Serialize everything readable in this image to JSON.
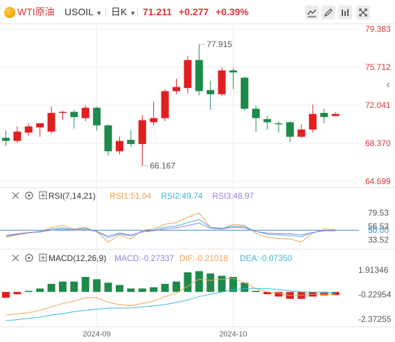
{
  "header": {
    "instrument_name": "WTI原油",
    "symbol": "USOIL",
    "period": "日K",
    "last_price": "71.211",
    "change": "+0.277",
    "change_pct": "+0.39%",
    "tools": [
      {
        "icon": "line-chart-icon"
      },
      {
        "icon": "draw-pen-icon"
      },
      {
        "icon": "indicator-bars-icon"
      },
      {
        "icon": "fullscreen-icon"
      }
    ],
    "collapse_icon": "‹"
  },
  "colors": {
    "up": "#e02020",
    "down": "#1e8a4a",
    "rsi1": "#f0a050",
    "rsi2": "#3ab7d8",
    "rsi3": "#9b7ee0",
    "dif": "#f0a050",
    "dea": "#3ab7d8",
    "price_axis": "#d93636",
    "grid": "#ececec"
  },
  "chart_data": [
    {
      "type": "candlestick",
      "title": "",
      "ylim": [
        64.699,
        79.383
      ],
      "y_ticks": [
        "79.383",
        "75.712",
        "72.041",
        "68.370",
        "64.699"
      ],
      "x_ticks": [
        "2024-09",
        "2024-10"
      ],
      "annotations": {
        "high": "77.915",
        "low": "66.167"
      },
      "grid": true,
      "candles": [
        {
          "o": 68.9,
          "h": 69.6,
          "l": 68.1,
          "c": 68.6
        },
        {
          "o": 68.6,
          "h": 70.0,
          "l": 68.4,
          "c": 69.5
        },
        {
          "o": 69.4,
          "h": 70.3,
          "l": 69.1,
          "c": 70.0
        },
        {
          "o": 69.9,
          "h": 70.3,
          "l": 69.0,
          "c": 70.3
        },
        {
          "o": 69.5,
          "h": 71.9,
          "l": 69.3,
          "c": 71.3
        },
        {
          "o": 71.3,
          "h": 71.5,
          "l": 70.6,
          "c": 71.4
        },
        {
          "o": 71.4,
          "h": 71.6,
          "l": 69.8,
          "c": 70.9
        },
        {
          "o": 70.8,
          "h": 72.0,
          "l": 70.5,
          "c": 71.8
        },
        {
          "o": 71.8,
          "h": 71.9,
          "l": 69.6,
          "c": 70.1
        },
        {
          "o": 70.1,
          "h": 70.2,
          "l": 67.2,
          "c": 67.6
        },
        {
          "o": 67.6,
          "h": 69.0,
          "l": 67.3,
          "c": 68.6
        },
        {
          "o": 68.7,
          "h": 69.6,
          "l": 68.0,
          "c": 68.3
        },
        {
          "o": 68.3,
          "h": 71.1,
          "l": 66.2,
          "c": 70.6
        },
        {
          "o": 70.4,
          "h": 72.4,
          "l": 70.1,
          "c": 70.8
        },
        {
          "o": 70.8,
          "h": 73.6,
          "l": 70.5,
          "c": 73.4
        },
        {
          "o": 73.4,
          "h": 74.6,
          "l": 73.1,
          "c": 73.8
        },
        {
          "o": 73.7,
          "h": 76.8,
          "l": 73.2,
          "c": 76.4
        },
        {
          "o": 76.4,
          "h": 77.9,
          "l": 73.0,
          "c": 73.4
        },
        {
          "o": 73.5,
          "h": 74.4,
          "l": 71.6,
          "c": 73.1
        },
        {
          "o": 73.1,
          "h": 75.7,
          "l": 72.9,
          "c": 75.4
        },
        {
          "o": 75.4,
          "h": 75.6,
          "l": 73.6,
          "c": 75.2
        },
        {
          "o": 74.7,
          "h": 74.8,
          "l": 71.5,
          "c": 71.7
        },
        {
          "o": 71.7,
          "h": 72.0,
          "l": 69.5,
          "c": 70.8
        },
        {
          "o": 70.7,
          "h": 71.0,
          "l": 69.7,
          "c": 70.4
        },
        {
          "o": 70.3,
          "h": 70.5,
          "l": 69.4,
          "c": 70.2
        },
        {
          "o": 70.4,
          "h": 70.5,
          "l": 68.5,
          "c": 69.0
        },
        {
          "o": 69.0,
          "h": 70.2,
          "l": 68.9,
          "c": 69.7
        },
        {
          "o": 69.7,
          "h": 72.1,
          "l": 69.4,
          "c": 71.2
        },
        {
          "o": 71.3,
          "h": 71.7,
          "l": 70.3,
          "c": 70.9
        },
        {
          "o": 71.0,
          "h": 71.4,
          "l": 71.0,
          "c": 71.2
        }
      ]
    },
    {
      "type": "line",
      "title": "RSI(7,14,21)",
      "ylim": [
        20,
        100
      ],
      "y_ticks": [
        "79.53",
        "56.53",
        "50.00",
        "33.52"
      ],
      "series": [
        {
          "name": "RSI1:51.04",
          "values": [
            38,
            42,
            45,
            48,
            55,
            58,
            52,
            55,
            47,
            30,
            42,
            35,
            50,
            52,
            60,
            63,
            72,
            79,
            55,
            52,
            60,
            58,
            45,
            38,
            36,
            35,
            30,
            45,
            52,
            51
          ]
        },
        {
          "name": "RSI2:49.74",
          "values": [
            40,
            43,
            46,
            48,
            52,
            54,
            51,
            53,
            48,
            37,
            44,
            40,
            48,
            50,
            55,
            57,
            63,
            68,
            55,
            53,
            57,
            56,
            48,
            43,
            42,
            41,
            39,
            46,
            50,
            50
          ]
        },
        {
          "name": "RSI3:48.97",
          "values": [
            41,
            44,
            46,
            47,
            50,
            52,
            50,
            51,
            48,
            40,
            45,
            42,
            47,
            49,
            52,
            54,
            58,
            62,
            53,
            52,
            55,
            54,
            48,
            45,
            44,
            44,
            42,
            46,
            49,
            49
          ]
        }
      ]
    },
    {
      "type": "bar",
      "title": "MACD(12,26,9)",
      "ylim": [
        -2.9,
        2.5
      ],
      "y_ticks": [
        "1.91346",
        "-0.22954",
        "-2.37255"
      ],
      "series": [
        {
          "name": "MACD:-0.27337",
          "values": [
            -0.5,
            -0.2,
            0.1,
            0.3,
            0.7,
            0.9,
            0.9,
            1.3,
            1.1,
            0.8,
            0.6,
            0.3,
            0.3,
            0.4,
            0.7,
            0.9,
            1.7,
            1.8,
            1.6,
            1.4,
            1.3,
            0.8,
            0.1,
            -0.2,
            -0.4,
            -0.6,
            -0.6,
            -0.4,
            -0.3,
            -0.27
          ]
        },
        {
          "name": "DIF:-0.21018",
          "values": [
            -2.0,
            -1.9,
            -1.8,
            -1.6,
            -1.3,
            -1.0,
            -0.8,
            -0.5,
            -0.5,
            -0.9,
            -1.1,
            -1.2,
            -1.0,
            -0.8,
            -0.4,
            -0.1,
            0.5,
            1.1,
            1.0,
            1.1,
            1.2,
            0.8,
            0.3,
            0.0,
            -0.1,
            -0.3,
            -0.3,
            -0.2,
            -0.2,
            -0.21
          ]
        },
        {
          "name": "DEA:-0.07350",
          "values": [
            -2.5,
            -2.4,
            -2.3,
            -2.2,
            -2.0,
            -1.9,
            -1.7,
            -1.6,
            -1.5,
            -1.4,
            -1.4,
            -1.4,
            -1.3,
            -1.2,
            -1.1,
            -0.9,
            -0.7,
            -0.4,
            -0.2,
            0.0,
            0.2,
            0.3,
            0.3,
            0.3,
            0.2,
            0.1,
            0.0,
            0.0,
            -0.05,
            -0.07
          ]
        }
      ]
    }
  ]
}
